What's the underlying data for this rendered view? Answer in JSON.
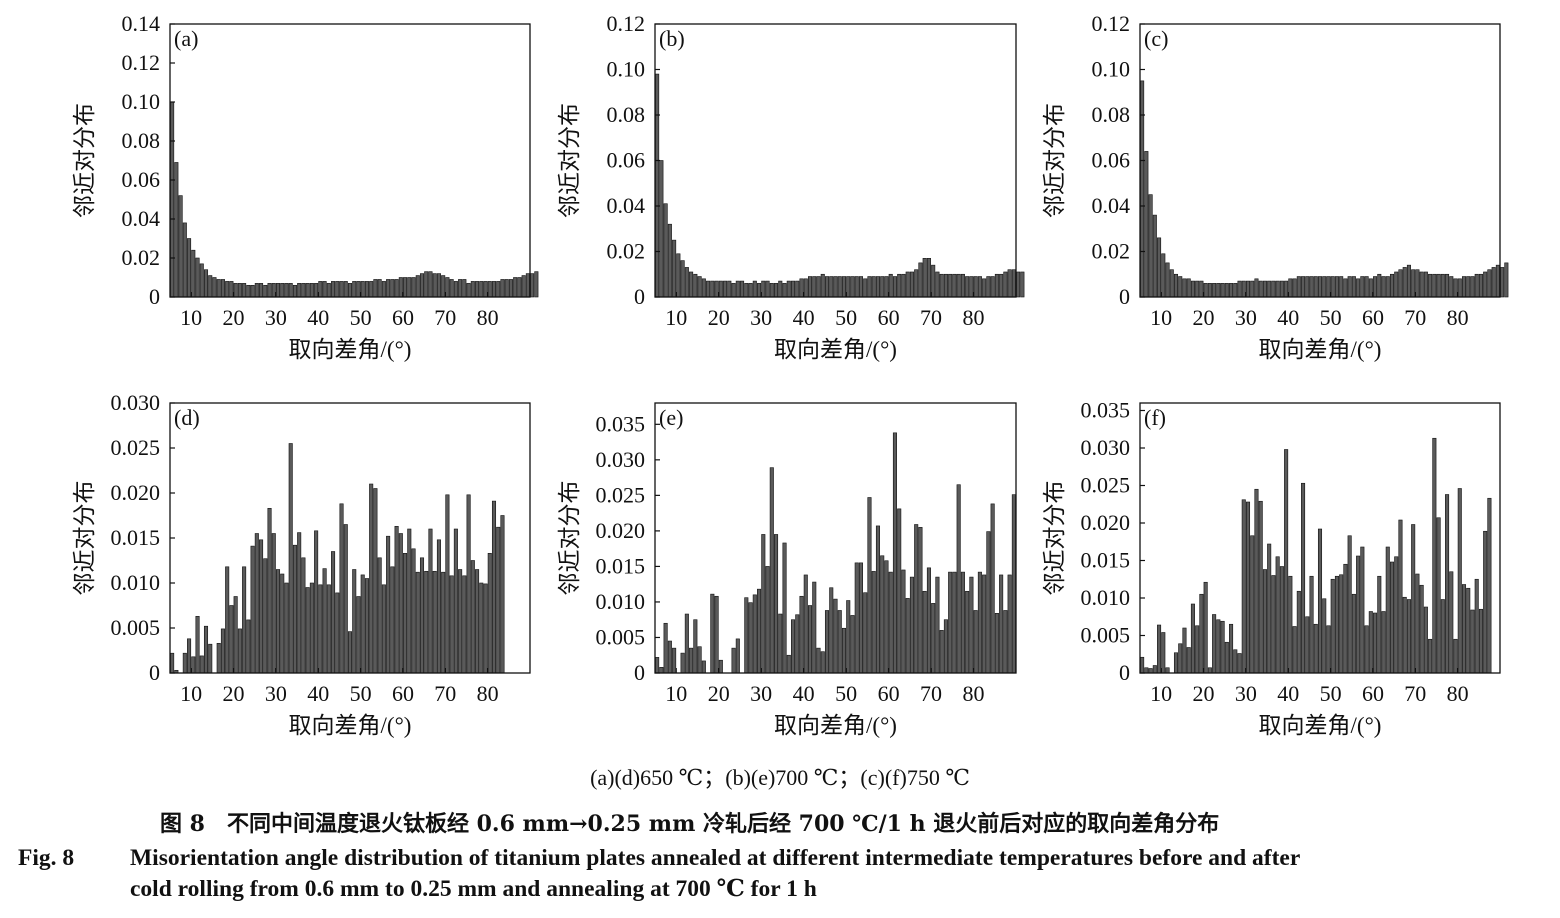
{
  "chart_data": [
    {
      "panel": "(a)",
      "type": "bar",
      "xlabel": "取向差角/(°)",
      "ylabel": "邻近对分布",
      "xlim": [
        5,
        90
      ],
      "ylim": [
        0,
        0.14
      ],
      "xticks": [
        10,
        20,
        30,
        40,
        50,
        60,
        70,
        80
      ],
      "yticks": [
        0,
        0.02,
        0.04,
        0.06,
        0.08,
        0.1,
        0.12,
        0.14
      ],
      "ytick_labels": [
        "0",
        "0.02",
        "0.04",
        "0.06",
        "0.08",
        "0.10",
        "0.12",
        "0.14"
      ],
      "bin_start": 5,
      "bin_width": 1,
      "values": [
        0.1,
        0.069,
        0.052,
        0.038,
        0.03,
        0.024,
        0.02,
        0.017,
        0.014,
        0.011,
        0.01,
        0.009,
        0.009,
        0.008,
        0.008,
        0.007,
        0.007,
        0.007,
        0.006,
        0.006,
        0.007,
        0.007,
        0.006,
        0.007,
        0.007,
        0.007,
        0.007,
        0.007,
        0.007,
        0.006,
        0.007,
        0.007,
        0.007,
        0.007,
        0.007,
        0.008,
        0.008,
        0.007,
        0.008,
        0.008,
        0.008,
        0.008,
        0.007,
        0.008,
        0.008,
        0.008,
        0.008,
        0.008,
        0.009,
        0.009,
        0.008,
        0.009,
        0.009,
        0.009,
        0.01,
        0.01,
        0.01,
        0.01,
        0.011,
        0.012,
        0.013,
        0.013,
        0.012,
        0.012,
        0.011,
        0.01,
        0.009,
        0.008,
        0.009,
        0.009,
        0.007,
        0.008,
        0.008,
        0.008,
        0.008,
        0.008,
        0.008,
        0.008,
        0.009,
        0.009,
        0.009,
        0.01,
        0.01,
        0.011,
        0.012,
        0.012,
        0.013
      ]
    },
    {
      "panel": "(b)",
      "type": "bar",
      "xlabel": "取向差角/(°)",
      "ylabel": "邻近对分布",
      "xlim": [
        5,
        90
      ],
      "ylim": [
        0,
        0.12
      ],
      "xticks": [
        10,
        20,
        30,
        40,
        50,
        60,
        70,
        80
      ],
      "yticks": [
        0,
        0.02,
        0.04,
        0.06,
        0.08,
        0.1,
        0.12
      ],
      "ytick_labels": [
        "0",
        "0.02",
        "0.04",
        "0.06",
        "0.08",
        "0.10",
        "0.12"
      ],
      "bin_start": 5,
      "bin_width": 1,
      "values": [
        0.098,
        0.06,
        0.041,
        0.032,
        0.025,
        0.019,
        0.016,
        0.013,
        0.011,
        0.01,
        0.009,
        0.008,
        0.007,
        0.007,
        0.007,
        0.007,
        0.007,
        0.007,
        0.006,
        0.007,
        0.007,
        0.006,
        0.006,
        0.007,
        0.006,
        0.007,
        0.007,
        0.006,
        0.006,
        0.007,
        0.006,
        0.007,
        0.007,
        0.007,
        0.008,
        0.008,
        0.009,
        0.009,
        0.009,
        0.01,
        0.009,
        0.009,
        0.009,
        0.009,
        0.009,
        0.009,
        0.009,
        0.009,
        0.009,
        0.008,
        0.009,
        0.009,
        0.009,
        0.009,
        0.009,
        0.01,
        0.009,
        0.01,
        0.01,
        0.011,
        0.011,
        0.012,
        0.015,
        0.017,
        0.017,
        0.014,
        0.011,
        0.01,
        0.01,
        0.01,
        0.01,
        0.01,
        0.01,
        0.009,
        0.009,
        0.009,
        0.009,
        0.008,
        0.009,
        0.009,
        0.01,
        0.01,
        0.011,
        0.012,
        0.012,
        0.011,
        0.011
      ]
    },
    {
      "panel": "(c)",
      "type": "bar",
      "xlabel": "取向差角/(°)",
      "ylabel": "邻近对分布",
      "xlim": [
        5,
        90
      ],
      "ylim": [
        0,
        0.12
      ],
      "xticks": [
        10,
        20,
        30,
        40,
        50,
        60,
        70,
        80
      ],
      "yticks": [
        0,
        0.02,
        0.04,
        0.06,
        0.08,
        0.1,
        0.12
      ],
      "ytick_labels": [
        "0",
        "0.02",
        "0.04",
        "0.06",
        "0.08",
        "0.10",
        "0.12"
      ],
      "bin_start": 5,
      "bin_width": 1,
      "values": [
        0.095,
        0.064,
        0.045,
        0.036,
        0.026,
        0.019,
        0.015,
        0.012,
        0.01,
        0.009,
        0.008,
        0.008,
        0.007,
        0.007,
        0.007,
        0.006,
        0.006,
        0.006,
        0.006,
        0.006,
        0.006,
        0.006,
        0.006,
        0.007,
        0.007,
        0.007,
        0.007,
        0.008,
        0.007,
        0.007,
        0.007,
        0.007,
        0.007,
        0.007,
        0.007,
        0.008,
        0.008,
        0.009,
        0.009,
        0.009,
        0.009,
        0.009,
        0.009,
        0.009,
        0.009,
        0.009,
        0.009,
        0.009,
        0.008,
        0.009,
        0.009,
        0.008,
        0.009,
        0.009,
        0.008,
        0.009,
        0.01,
        0.009,
        0.009,
        0.01,
        0.011,
        0.012,
        0.013,
        0.014,
        0.012,
        0.012,
        0.011,
        0.011,
        0.01,
        0.01,
        0.01,
        0.01,
        0.01,
        0.009,
        0.008,
        0.008,
        0.009,
        0.009,
        0.009,
        0.01,
        0.01,
        0.011,
        0.012,
        0.013,
        0.014,
        0.013,
        0.015
      ]
    },
    {
      "panel": "(d)",
      "type": "bar",
      "xlabel": "取向差角/(°)",
      "ylabel": "邻近对分布",
      "xlim": [
        5,
        90
      ],
      "ylim": [
        0,
        0.03
      ],
      "xticks": [
        10,
        20,
        30,
        40,
        50,
        60,
        70,
        80
      ],
      "yticks": [
        0,
        0.005,
        0.01,
        0.015,
        0.02,
        0.025,
        0.03
      ],
      "ytick_labels": [
        "0",
        "0.005",
        "0.010",
        "0.015",
        "0.020",
        "0.025",
        "0.030"
      ],
      "bin_start": 5,
      "bin_width": 1,
      "values": [
        0.0022,
        0.0003,
        0.0,
        0.0022,
        0.0038,
        0.0018,
        0.0063,
        0.0019,
        0.0052,
        0.0032,
        0.0,
        0.0033,
        0.0049,
        0.0118,
        0.0075,
        0.0085,
        0.0049,
        0.0118,
        0.0059,
        0.0141,
        0.0155,
        0.0148,
        0.0127,
        0.0183,
        0.0155,
        0.0115,
        0.011,
        0.01,
        0.0255,
        0.0142,
        0.0156,
        0.0128,
        0.0095,
        0.01,
        0.0158,
        0.0098,
        0.0116,
        0.0098,
        0.0135,
        0.0089,
        0.0188,
        0.0165,
        0.0046,
        0.0115,
        0.0085,
        0.0109,
        0.0105,
        0.021,
        0.0205,
        0.0128,
        0.0098,
        0.0152,
        0.0118,
        0.0163,
        0.0155,
        0.0133,
        0.016,
        0.0138,
        0.0112,
        0.0128,
        0.0113,
        0.016,
        0.0113,
        0.0148,
        0.0112,
        0.0198,
        0.0108,
        0.016,
        0.0115,
        0.0108,
        0.0198,
        0.0125,
        0.0115,
        0.01,
        0.0099,
        0.0133,
        0.0191,
        0.0162,
        0.0175
      ]
    },
    {
      "panel": "(e)",
      "type": "bar",
      "xlabel": "取向差角/(°)",
      "ylabel": "邻近对分布",
      "xlim": [
        5,
        90
      ],
      "ylim": [
        0,
        0.038
      ],
      "xticks": [
        10,
        20,
        30,
        40,
        50,
        60,
        70,
        80
      ],
      "yticks": [
        0,
        0.005,
        0.01,
        0.015,
        0.02,
        0.025,
        0.03,
        0.035
      ],
      "ytick_labels": [
        "0",
        "0.005",
        "0.010",
        "0.015",
        "0.020",
        "0.025",
        "0.030",
        "0.035"
      ],
      "bin_start": 5,
      "bin_width": 1,
      "values": [
        0.0022,
        0.0008,
        0.007,
        0.0045,
        0.0035,
        0.0,
        0.0028,
        0.0083,
        0.0035,
        0.0075,
        0.0037,
        0.0017,
        0.0,
        0.0111,
        0.0108,
        0.0018,
        0.0,
        0.0,
        0.0035,
        0.0048,
        0.0,
        0.0106,
        0.0099,
        0.011,
        0.0118,
        0.0195,
        0.015,
        0.0289,
        0.0195,
        0.0083,
        0.0183,
        0.0025,
        0.0075,
        0.0082,
        0.0108,
        0.0138,
        0.0095,
        0.0128,
        0.0035,
        0.003,
        0.0088,
        0.012,
        0.0104,
        0.0088,
        0.0063,
        0.0102,
        0.0081,
        0.0155,
        0.0155,
        0.0113,
        0.0247,
        0.0143,
        0.0207,
        0.0165,
        0.0158,
        0.0142,
        0.0338,
        0.0231,
        0.0145,
        0.0105,
        0.0135,
        0.0209,
        0.0205,
        0.0115,
        0.0148,
        0.0098,
        0.0135,
        0.006,
        0.0075,
        0.0142,
        0.0142,
        0.0265,
        0.0142,
        0.0115,
        0.0135,
        0.0088,
        0.0142,
        0.0138,
        0.0199,
        0.0238,
        0.0084,
        0.0138,
        0.0088,
        0.0138,
        0.0251
      ]
    },
    {
      "panel": "(f)",
      "type": "bar",
      "xlabel": "取向差角/(°)",
      "ylabel": "邻近对分布",
      "xlim": [
        5,
        90
      ],
      "ylim": [
        0,
        0.036
      ],
      "xticks": [
        10,
        20,
        30,
        40,
        50,
        60,
        70,
        80
      ],
      "yticks": [
        0,
        0.005,
        0.01,
        0.015,
        0.02,
        0.025,
        0.03,
        0.035
      ],
      "ytick_labels": [
        "0",
        "0.005",
        "0.010",
        "0.015",
        "0.020",
        "0.025",
        "0.030",
        "0.035"
      ],
      "bin_start": 5,
      "bin_width": 1,
      "values": [
        0.0021,
        0.0007,
        0.0006,
        0.001,
        0.0064,
        0.0054,
        0.0007,
        0.0,
        0.0027,
        0.0039,
        0.006,
        0.0034,
        0.0092,
        0.0063,
        0.0105,
        0.0121,
        0.0007,
        0.0078,
        0.0071,
        0.0069,
        0.0041,
        0.0065,
        0.0031,
        0.0026,
        0.0231,
        0.0228,
        0.0183,
        0.0245,
        0.0229,
        0.0138,
        0.0172,
        0.013,
        0.0155,
        0.0142,
        0.0298,
        0.0129,
        0.0062,
        0.0109,
        0.0253,
        0.0075,
        0.0129,
        0.0065,
        0.0192,
        0.0099,
        0.0063,
        0.0125,
        0.0129,
        0.0131,
        0.0145,
        0.0183,
        0.0105,
        0.0156,
        0.0168,
        0.0063,
        0.0082,
        0.008,
        0.0129,
        0.0082,
        0.0168,
        0.0148,
        0.0155,
        0.0204,
        0.0101,
        0.0098,
        0.0198,
        0.0132,
        0.0117,
        0.0088,
        0.0045,
        0.0313,
        0.0207,
        0.0098,
        0.0238,
        0.0135,
        0.0045,
        0.0246,
        0.0118,
        0.0113,
        0.0084,
        0.0125,
        0.0085,
        0.0189,
        0.0233
      ]
    }
  ],
  "captions": {
    "sub": "(a)(d)650 ℃；(b)(e)700 ℃；(c)(f)750 ℃",
    "cn": "图 8　不同中间温度退火钛板经 0.6 mm→0.25 mm 冷轧后经 700 ℃/1 h 退火前后对应的取向差角分布",
    "en_label": "Fig. 8",
    "en_line1": "Misorientation angle distribution of titanium plates annealed at different intermediate temperatures before and after",
    "en_line2": "cold rolling from 0.6 mm to 0.25 mm and annealing at 700 ℃ for 1 h"
  },
  "colors": {
    "bar_fill": "#5a5a5a",
    "bar_edge": "#111111",
    "axis": "#111111",
    "background": "#ffffff"
  }
}
